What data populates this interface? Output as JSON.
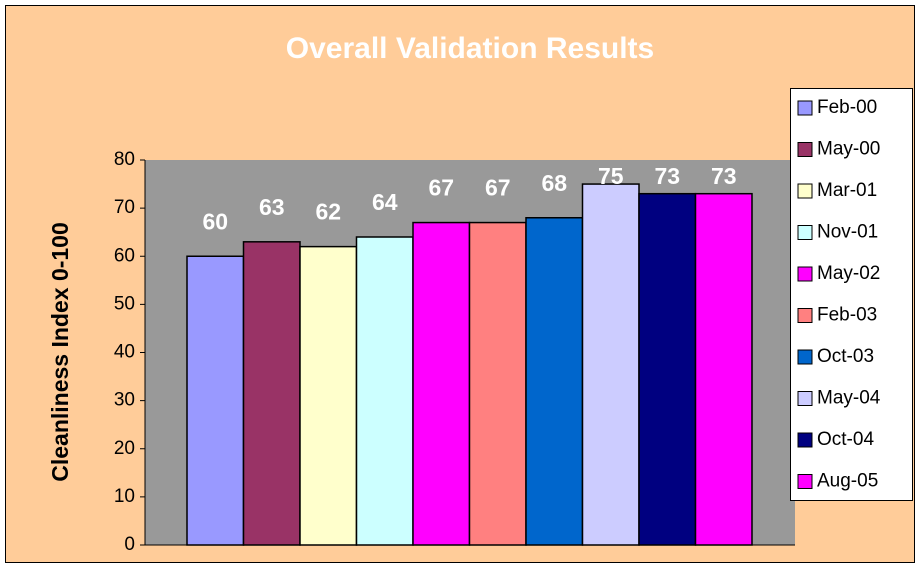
{
  "chart_data": {
    "type": "bar",
    "title": "Overall Validation Results",
    "y_label": "Cleanliness Index 0-100",
    "categories": [
      null
    ],
    "series": [
      {
        "name": "Feb-00",
        "color": "#9999FF",
        "values": [
          60
        ]
      },
      {
        "name": "May-00",
        "color": "#993366",
        "values": [
          63
        ]
      },
      {
        "name": "Mar-01",
        "color": "#FFFFCC",
        "values": [
          62
        ]
      },
      {
        "name": "Nov-01",
        "color": "#CCFFFF",
        "values": [
          64
        ]
      },
      {
        "name": "May-02",
        "color": "#FF00FF",
        "values": [
          67
        ]
      },
      {
        "name": "Feb-03",
        "color": "#FF8080",
        "values": [
          67
        ]
      },
      {
        "name": "Oct-03",
        "color": "#0066CC",
        "values": [
          68
        ]
      },
      {
        "name": "May-04",
        "color": "#CCCCFF",
        "values": [
          75
        ]
      },
      {
        "name": "Oct-04",
        "color": "#000080",
        "values": [
          73
        ]
      },
      {
        "name": "Aug-05",
        "color": "#FF00FF",
        "values": [
          73
        ]
      }
    ],
    "ylim": [
      0,
      80
    ],
    "yticks": [
      0,
      10,
      20,
      30,
      40,
      50,
      60,
      70,
      80
    ],
    "legend": "right",
    "plot_background": "#999999",
    "background": "#FFCC99"
  }
}
